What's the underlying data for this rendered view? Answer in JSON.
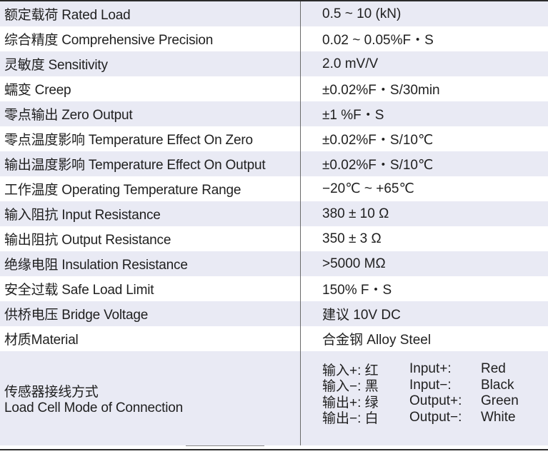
{
  "specs": [
    {
      "name": "额定载荷 Rated Load",
      "value": "0.5 ~ 10 (kN)"
    },
    {
      "name": "综合精度 Comprehensive Precision",
      "value": "0.02 ~ 0.05%F・S"
    },
    {
      "name": "灵敏度 Sensitivity",
      "value": "2.0 mV/V"
    },
    {
      "name": "蠕变 Creep",
      "value": "±0.02%F・S/30min"
    },
    {
      "name": "零点输出 Zero Output",
      "value": "±1 %F・S"
    },
    {
      "name": "零点温度影响 Temperature Effect On Zero",
      "value": "±0.02%F・S/10℃"
    },
    {
      "name": "输出温度影响 Temperature Effect On Output",
      "value": "±0.02%F・S/10℃"
    },
    {
      "name": "工作温度 Operating Temperature Range",
      "value": "−20℃ ~ +65℃"
    },
    {
      "name": "输入阻抗 Input Resistance",
      "value": "380 ± 10 Ω"
    },
    {
      "name": "输出阻抗 Output Resistance",
      "value": "350 ± 3 Ω"
    },
    {
      "name": "绝缘电阻 Insulation Resistance",
      "value": ">5000 MΩ"
    },
    {
      "name": "安全过载 Safe Load Limit",
      "value": "150% F・S"
    },
    {
      "name": "供桥电压 Bridge Voltage",
      "value": "建议 10V DC"
    },
    {
      "name": "材质Material",
      "value": "合金钢 Alloy Steel"
    }
  ],
  "connection": {
    "name_cn": "传感器接线方式",
    "name_en": "Load Cell Mode of Connection",
    "wires": [
      {
        "cn": "输入+: 红",
        "en": "Input+:",
        "color": "Red"
      },
      {
        "cn": "输入−: 黑",
        "en": "Input−:",
        "color": "Black"
      },
      {
        "cn": "输出+: 绿",
        "en": "Output+:",
        "color": "Green"
      },
      {
        "cn": "输出−: 白",
        "en": "Output−:",
        "color": "White"
      }
    ]
  }
}
